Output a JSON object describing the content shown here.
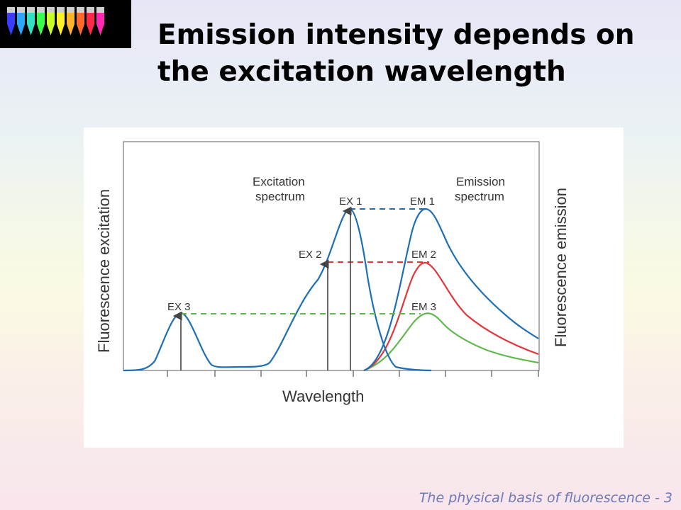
{
  "slide": {
    "title_line1": "Emission intensity depends on",
    "title_line2": "the excitation wavelength",
    "footer": "The physical basis of fluorescence - 3"
  },
  "thumbnail": {
    "tube_colors": [
      "#3a3cff",
      "#2aa7ff",
      "#33e0c4",
      "#3aff4a",
      "#c6ff2a",
      "#fff02a",
      "#ffb42a",
      "#ff6a2a",
      "#ff2a4a",
      "#ff2ab0"
    ]
  },
  "diagram": {
    "xlabel": "Wavelength",
    "ylabel_left": "Fluorescence excitation",
    "ylabel_right": "Fluorescence emission",
    "excitation_label_line1": "Excitation",
    "excitation_label_line2": "spectrum",
    "emission_label_line1": "Emission",
    "emission_label_line2": "spectrum",
    "ex_labels": [
      "EX 1",
      "EX 2",
      "EX 3"
    ],
    "em_labels": [
      "EM 1",
      "EM 2",
      "EM 3"
    ],
    "colors": {
      "ex1_em1": "#1f6fb5",
      "ex2_em2": "#e2363c",
      "ex3_em3": "#5fb94c",
      "arrow": "#444444"
    }
  }
}
